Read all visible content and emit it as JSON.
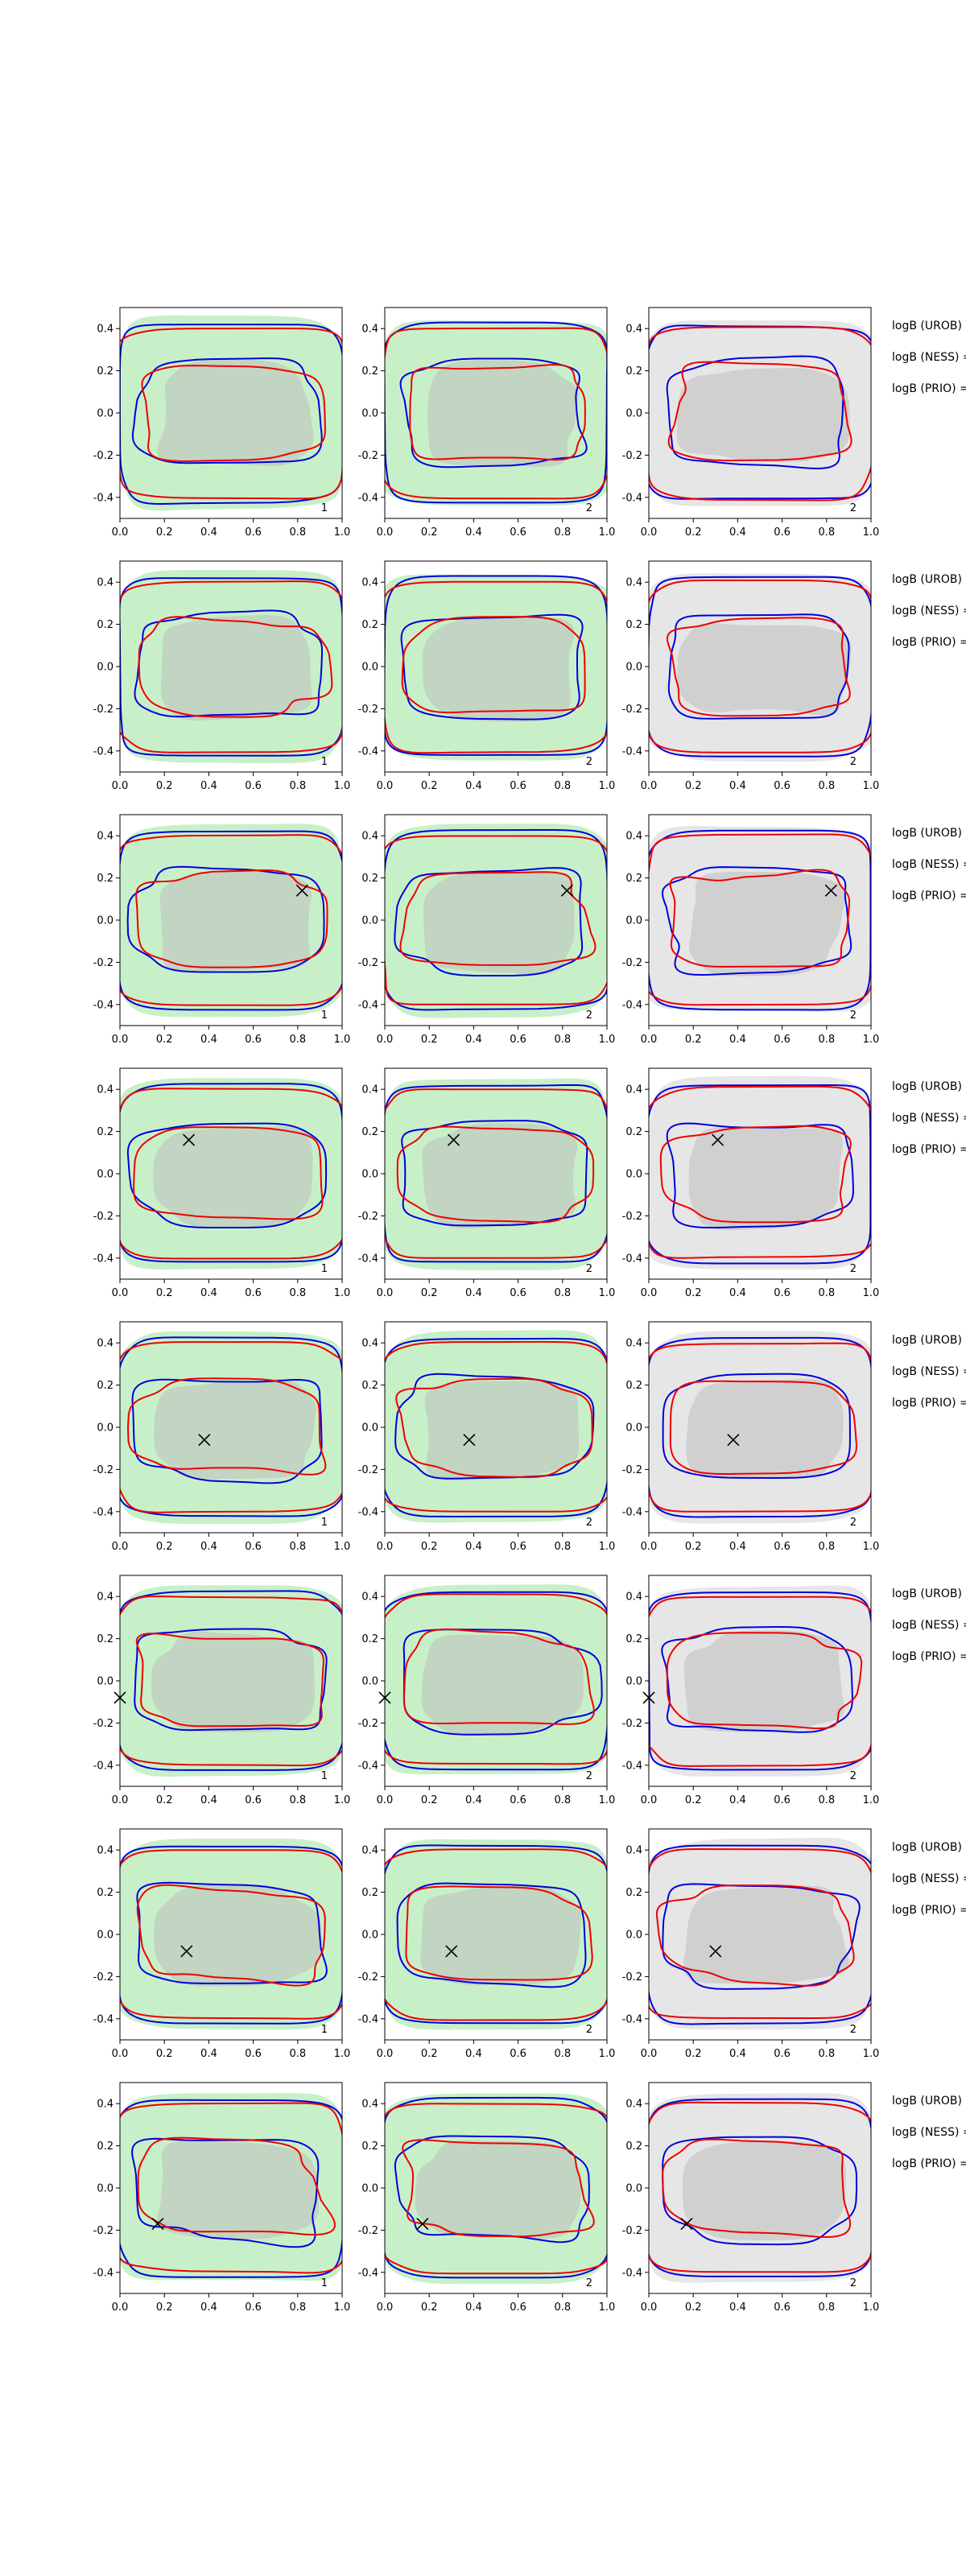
{
  "figure": {
    "rows": 8,
    "cols": 3,
    "side_labels": [
      "logB (UROB) =",
      "logB (NESS) =",
      "logB (PRIO) ="
    ],
    "colors": {
      "red_contour": "#ee0000",
      "blue_contour": "#0000dd",
      "green_fill": "#c8f0c8",
      "grey_fill": "#bdbdbd",
      "light_grey_fill": "#e6e6e6",
      "marker": "#000000"
    }
  },
  "chart_data": {
    "type": "contour",
    "xlim": [
      0.0,
      1.0
    ],
    "ylim": [
      -0.5,
      0.5
    ],
    "xticks": [
      "0.0",
      "0.2",
      "0.4",
      "0.6",
      "0.8",
      "1.0"
    ],
    "yticks": [
      "-0.4",
      "-0.2",
      "0.0",
      "0.2",
      "0.4"
    ],
    "xtick_values": [
      0.0,
      0.2,
      0.4,
      0.6,
      0.8,
      1.0
    ],
    "ytick_values": [
      -0.4,
      -0.2,
      0.0,
      0.2,
      0.4
    ],
    "column_labels": [
      "1",
      "2",
      "2"
    ],
    "column_background": [
      "green",
      "green",
      "grey"
    ],
    "rows": [
      {
        "marker": null
      },
      {
        "marker": null
      },
      {
        "marker": [
          0.82,
          0.14
        ]
      },
      {
        "marker": [
          0.31,
          0.16
        ]
      },
      {
        "marker": [
          0.38,
          -0.06
        ]
      },
      {
        "marker": [
          0.0,
          -0.08
        ]
      },
      {
        "marker": [
          0.3,
          -0.08
        ]
      },
      {
        "marker": [
          0.17,
          -0.17
        ]
      }
    ]
  }
}
